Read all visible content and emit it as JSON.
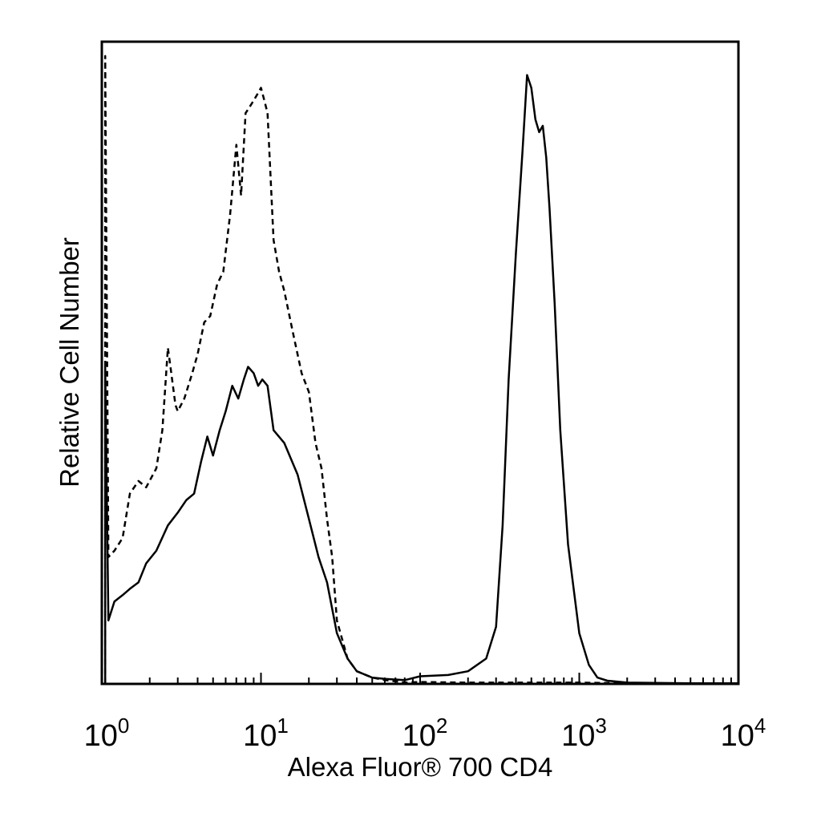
{
  "chart_data": {
    "type": "line",
    "xlabel": "Alexa Fluor® 700 CD4",
    "ylabel": "Relative Cell Number",
    "x_scale": "log",
    "xlim": [
      1,
      10000
    ],
    "ylim": [
      0,
      100
    ],
    "grid": false,
    "x_ticks": [
      {
        "value": 1,
        "base": "10",
        "exp": "0"
      },
      {
        "value": 10,
        "base": "10",
        "exp": "1"
      },
      {
        "value": 100,
        "base": "10",
        "exp": "2"
      },
      {
        "value": 1000,
        "base": "10",
        "exp": "3"
      },
      {
        "value": 10000,
        "base": "10",
        "exp": "4"
      }
    ],
    "series": [
      {
        "style": "dashed",
        "x": [
          1.05,
          1.1,
          1.2,
          1.35,
          1.5,
          1.7,
          1.9,
          2.2,
          2.4,
          2.6,
          2.7,
          2.9,
          3.0,
          3.3,
          3.7,
          4.0,
          4.4,
          4.8,
          5.3,
          5.8,
          6.4,
          7.0,
          7.5,
          8.0,
          8.5,
          9.0,
          9.5,
          10.0,
          10.5,
          11.0,
          12.0,
          13.0,
          14.0,
          16.0,
          18.0,
          20.0,
          22.0,
          24.0,
          26.0,
          28.0,
          30.0,
          35.0,
          40.0,
          50.0,
          60.0,
          70.0,
          80.0,
          100.0,
          200.0,
          500.0,
          1000.0,
          2000.0,
          5000.0,
          10000.0
        ],
        "y": [
          99,
          20,
          21,
          23,
          30,
          32,
          31,
          34,
          40,
          53,
          50,
          44,
          43,
          45,
          49,
          52,
          57,
          58,
          63,
          65,
          74,
          85,
          77,
          90,
          91,
          92,
          93,
          94,
          92,
          90,
          70,
          65,
          62,
          55,
          49,
          46,
          38,
          34,
          26,
          20,
          10,
          4,
          2,
          1,
          0.6,
          0.4,
          0.2,
          0.3,
          0.2,
          0.2,
          0.2,
          0.1,
          0.1,
          0.1
        ]
      },
      {
        "style": "solid",
        "x": [
          1.05,
          1.1,
          1.2,
          1.35,
          1.5,
          1.7,
          1.9,
          2.2,
          2.6,
          3.0,
          3.4,
          3.8,
          4.2,
          4.6,
          5.0,
          5.5,
          6.0,
          6.6,
          7.2,
          7.8,
          8.3,
          9.0,
          9.6,
          10.2,
          11.0,
          12.0,
          14.0,
          17.0,
          20.0,
          23.0,
          26.0,
          30.0,
          35.0,
          40.0,
          50.0,
          60.0,
          80.0,
          100.0,
          150.0,
          200.0,
          260.0,
          300.0,
          330.0,
          360.0,
          400.0,
          440.0,
          470.0,
          500.0,
          530.0,
          560.0,
          590.0,
          620.0,
          650.0,
          700.0,
          760.0,
          850.0,
          1000.0,
          1150.0,
          1300.0,
          1500.0,
          2000.0,
          5000.0,
          10000.0
        ],
        "y": [
          50,
          10,
          13,
          14,
          15,
          16,
          19,
          21,
          25,
          27,
          29,
          30,
          35,
          39,
          36,
          40,
          43,
          47,
          45,
          48,
          50,
          49,
          47,
          48,
          47,
          40,
          38,
          33,
          26,
          20,
          16,
          8,
          4,
          2,
          1,
          0.8,
          0.6,
          1.2,
          1.4,
          2,
          4,
          9,
          25,
          48,
          68,
          84,
          96,
          94,
          89,
          87,
          88,
          83,
          75,
          60,
          40,
          22,
          8,
          3,
          1,
          0.5,
          0.2,
          0.1,
          0.1
        ]
      }
    ]
  }
}
